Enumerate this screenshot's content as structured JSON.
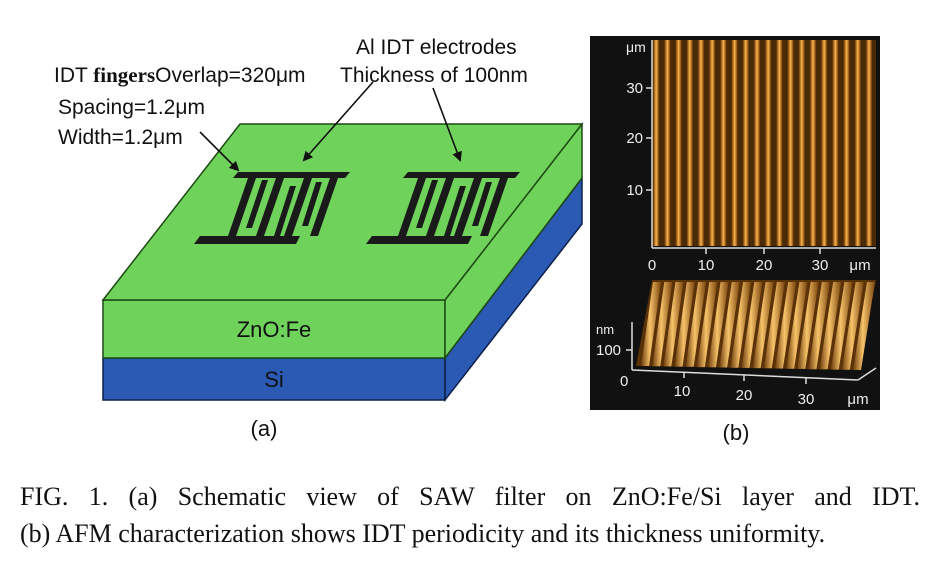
{
  "panel_a": {
    "annotation_idt": "IDT fingers",
    "annotation_idt_prefix": "IDT ",
    "annotation_idt_bold": "fingers",
    "annotation_overlap": "Overlap=320μm",
    "annotation_spacing": "Spacing=1.2μm",
    "annotation_width": "Width=1.2μm",
    "annotation_electrodes_line1": "Al IDT electrodes",
    "annotation_electrodes_line2": "Thickness of  100nm",
    "layer_top_label": "ZnO:Fe",
    "layer_bottom_label": "Si",
    "panel_label": "(a)",
    "colors": {
      "zno": "#6fd25a",
      "si": "#2b5ab5",
      "electrode": "#1a1a1a"
    }
  },
  "panel_b": {
    "panel_label": "(b)",
    "top_unit": "μm",
    "top_y_ticks": [
      "30",
      "20",
      "10"
    ],
    "top_x_ticks": [
      "0",
      "10",
      "20",
      "30",
      "μm"
    ],
    "bottom_z_unit": "nm",
    "bottom_z_tick": "100",
    "bottom_origin": "0",
    "bottom_x_ticks": [
      "10",
      "20",
      "30",
      "μm"
    ],
    "colors": {
      "background": "#111111",
      "stripe_light": "#e9a64a",
      "stripe_dark": "#5a3208"
    }
  },
  "caption": {
    "line1": "FIG. 1. (a) Schematic view of SAW filter on ZnO:Fe/Si layer and IDT.",
    "line2": "(b) AFM characterization shows IDT periodicity and its thickness uniformity."
  }
}
